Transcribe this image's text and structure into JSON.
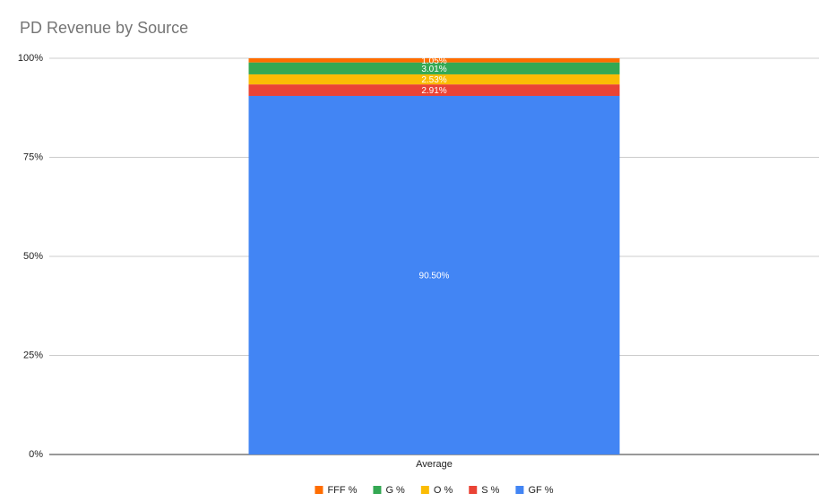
{
  "chart_data": {
    "type": "stacked_bar",
    "title": "PD Revenue by Source",
    "categories": [
      "Average"
    ],
    "series": [
      {
        "name": "FFF %",
        "color": "#ff6d01",
        "values": [
          1.05
        ],
        "value_labels": [
          "1.05%"
        ]
      },
      {
        "name": "G %",
        "color": "#34a853",
        "values": [
          3.01
        ],
        "value_labels": [
          "3.01%"
        ]
      },
      {
        "name": "O %",
        "color": "#fbbc04",
        "values": [
          2.53
        ],
        "value_labels": [
          "2.53%"
        ]
      },
      {
        "name": "S %",
        "color": "#ea4335",
        "values": [
          2.91
        ],
        "value_labels": [
          "2.91%"
        ]
      },
      {
        "name": "GF %",
        "color": "#4285f4",
        "values": [
          90.5
        ],
        "value_labels": [
          "90.50%"
        ]
      }
    ],
    "ylim": [
      0,
      100
    ],
    "yticks": [
      {
        "value": 0,
        "label": "0%"
      },
      {
        "value": 25,
        "label": "25%"
      },
      {
        "value": 50,
        "label": "50%"
      },
      {
        "value": 75,
        "label": "75%"
      },
      {
        "value": 100,
        "label": "100%"
      }
    ],
    "grid": true
  }
}
